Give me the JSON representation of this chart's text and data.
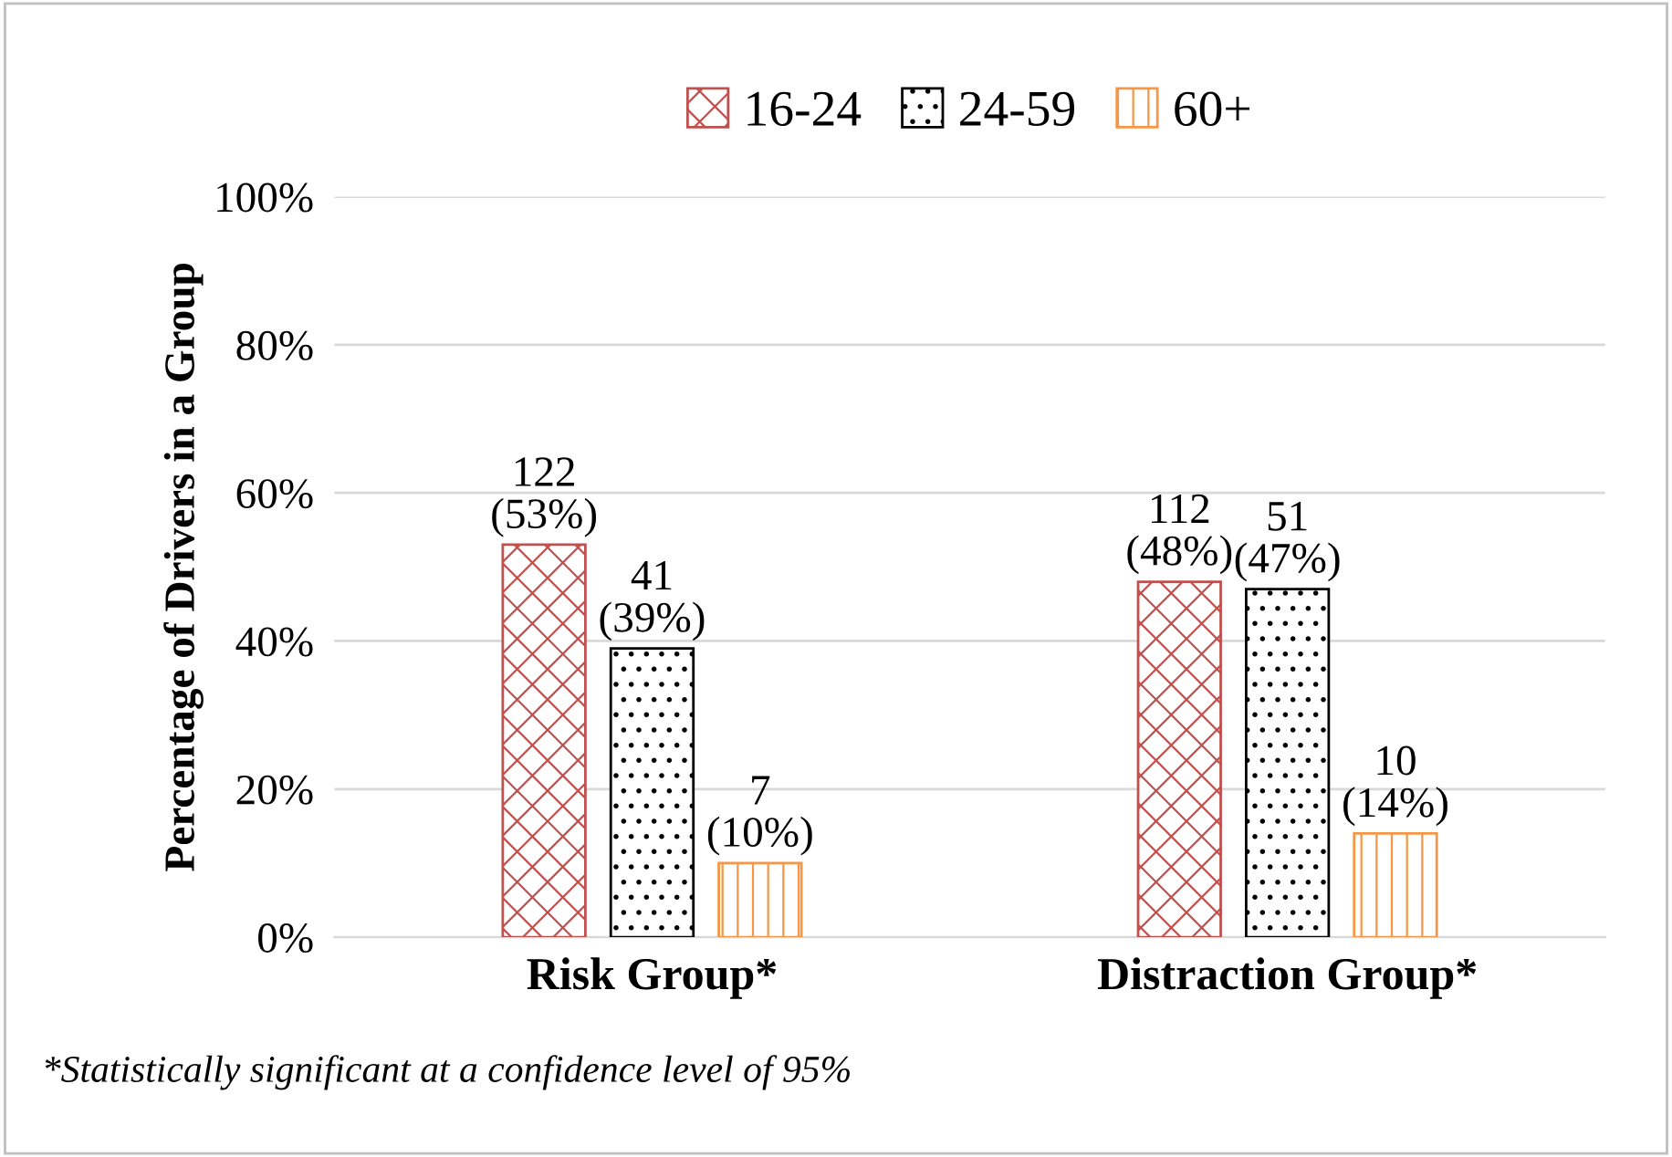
{
  "chart_data": {
    "type": "bar",
    "ylabel": "Percentage of Drivers in a Group",
    "categories": [
      "Risk Group*",
      "Distraction Group*"
    ],
    "series": [
      {
        "name": "16-24",
        "color": "#c0504d",
        "values": [
          53,
          48
        ],
        "value_labels": [
          "122\n(53%)",
          "112\n(48%)"
        ]
      },
      {
        "name": "24-59",
        "color": "#000000",
        "values": [
          39,
          47
        ],
        "value_labels": [
          "41\n(39%)",
          "51\n(47%)"
        ]
      },
      {
        "name": "60+",
        "color": "#f79646",
        "values": [
          10,
          14
        ],
        "value_labels": [
          "7\n(10%)",
          "10\n(14%)"
        ]
      }
    ],
    "ylim": [
      0,
      100
    ],
    "yticks": [
      {
        "value": 0,
        "label": "0%"
      },
      {
        "value": 20,
        "label": "20%"
      },
      {
        "value": 40,
        "label": "40%"
      },
      {
        "value": 60,
        "label": "60%"
      },
      {
        "value": 80,
        "label": "80%"
      },
      {
        "value": 100,
        "label": "100%"
      }
    ],
    "grid": "y",
    "legend": "top",
    "annotations": [
      "*Statistically significant at a confidence level of 95%"
    ]
  }
}
